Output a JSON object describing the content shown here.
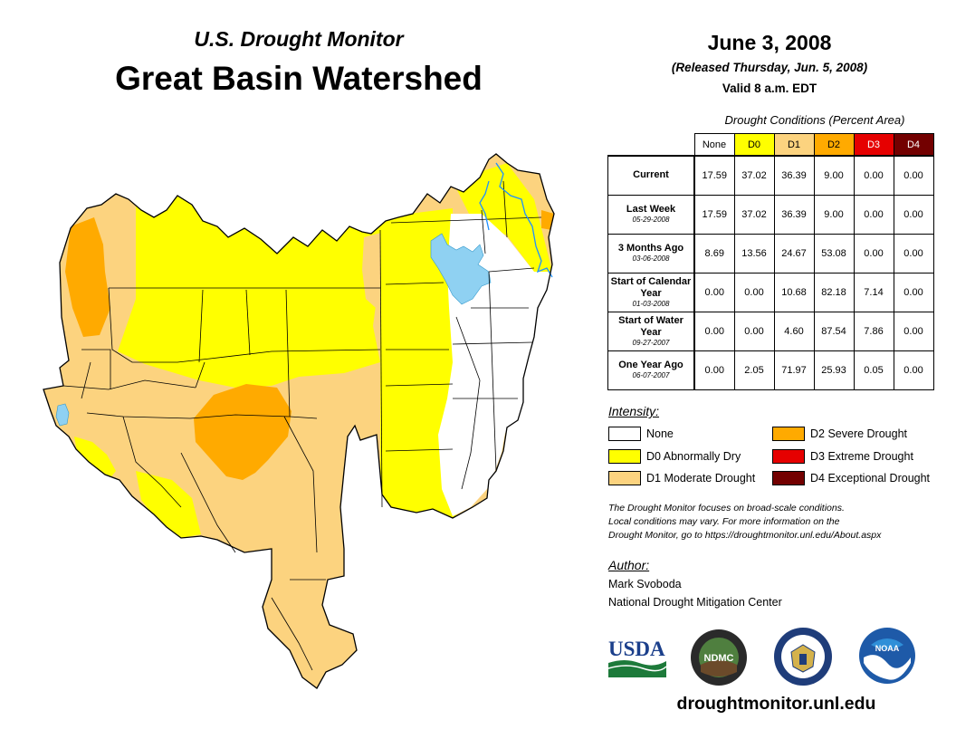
{
  "header": {
    "subtitle": "U.S. Drought Monitor",
    "title": "Great Basin Watershed",
    "date": "June 3, 2008",
    "released": "(Released Thursday, Jun. 5, 2008)",
    "valid": "Valid 8 a.m. EDT"
  },
  "table": {
    "caption": "Drought Conditions (Percent Area)",
    "columns": [
      "None",
      "D0",
      "D1",
      "D2",
      "D3",
      "D4"
    ],
    "rows": [
      {
        "label": "Current",
        "date": "",
        "values": [
          "17.59",
          "37.02",
          "36.39",
          "9.00",
          "0.00",
          "0.00"
        ]
      },
      {
        "label": "Last Week",
        "date": "05-29-2008",
        "values": [
          "17.59",
          "37.02",
          "36.39",
          "9.00",
          "0.00",
          "0.00"
        ]
      },
      {
        "label": "3 Months Ago",
        "date": "03-06-2008",
        "values": [
          "8.69",
          "13.56",
          "24.67",
          "53.08",
          "0.00",
          "0.00"
        ]
      },
      {
        "label": "Start of Calendar Year",
        "date": "01-03-2008",
        "values": [
          "0.00",
          "0.00",
          "10.68",
          "82.18",
          "7.14",
          "0.00"
        ]
      },
      {
        "label": "Start of Water Year",
        "date": "09-27-2007",
        "values": [
          "0.00",
          "0.00",
          "4.60",
          "87.54",
          "7.86",
          "0.00"
        ]
      },
      {
        "label": "One Year Ago",
        "date": "06-07-2007",
        "values": [
          "0.00",
          "2.05",
          "71.97",
          "25.93",
          "0.05",
          "0.00"
        ]
      }
    ]
  },
  "legend": {
    "title": "Intensity:",
    "items": [
      {
        "label": "None",
        "color": "#ffffff"
      },
      {
        "label": "D0 Abnormally Dry",
        "color": "#ffff00"
      },
      {
        "label": "D1 Moderate Drought",
        "color": "#fcd37f"
      },
      {
        "label": "D2 Severe Drought",
        "color": "#ffaa00"
      },
      {
        "label": "D3 Extreme Drought",
        "color": "#e60000"
      },
      {
        "label": "D4 Exceptional Drought",
        "color": "#730000"
      }
    ]
  },
  "disclaimer": {
    "line1": "The Drought Monitor focuses on broad-scale conditions.",
    "line2": "Local conditions may vary. For more information on the",
    "line3": "Drought Monitor, go to https://droughtmonitor.unl.edu/About.aspx"
  },
  "author": {
    "title": "Author:",
    "name": "Mark Svoboda",
    "org": "National Drought Mitigation Center"
  },
  "logos": {
    "usda": "USDA",
    "ndmc": "NDMC",
    "noaa": "NOAA"
  },
  "website": "droughtmonitor.unl.edu",
  "colors": {
    "none": "#ffffff",
    "d0": "#ffff00",
    "d1": "#fcd37f",
    "d2": "#ffaa00",
    "d3": "#e60000",
    "d4": "#730000",
    "water": "#8fd1f2",
    "river": "#1e90ff"
  }
}
